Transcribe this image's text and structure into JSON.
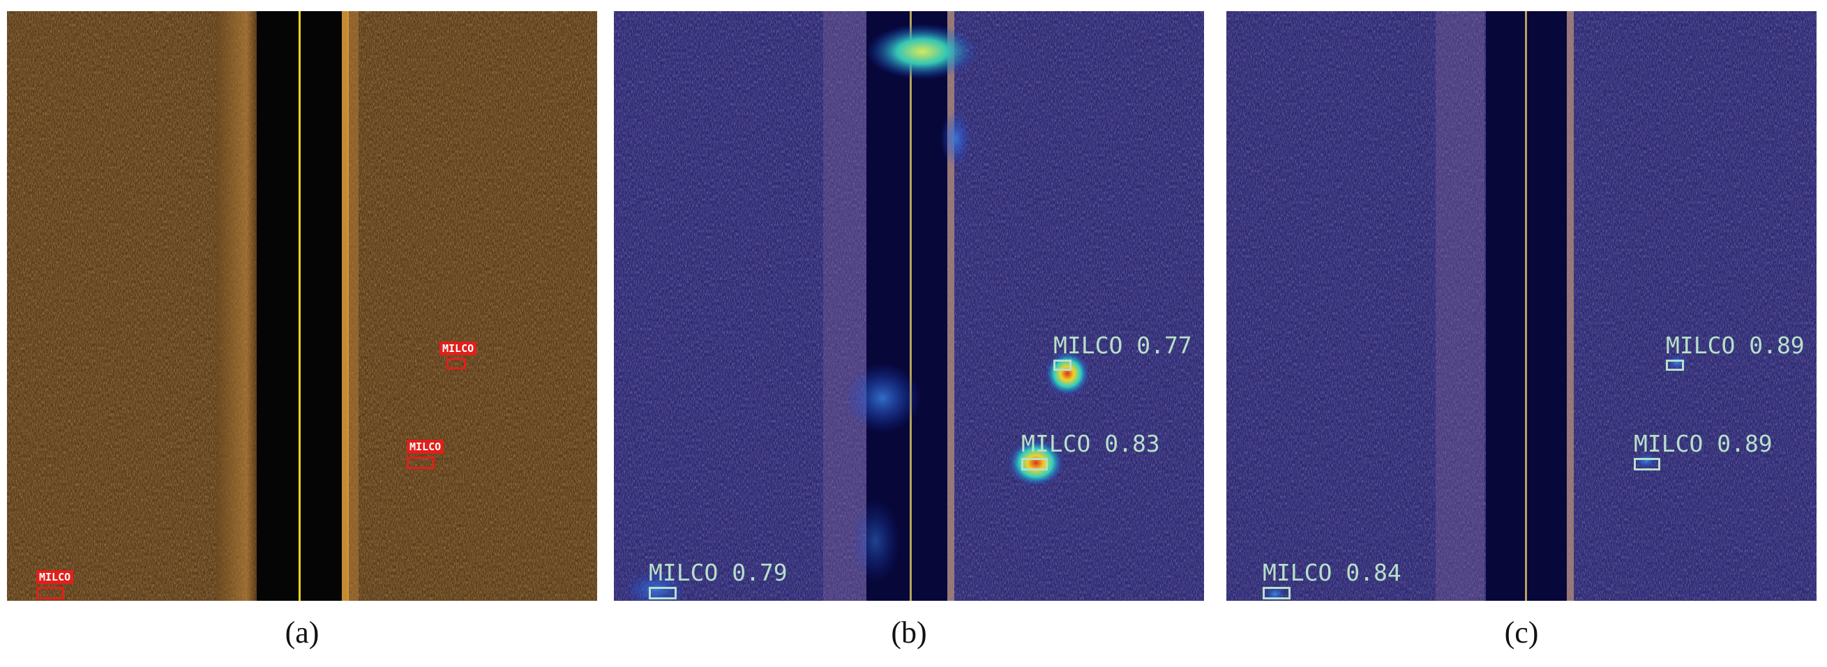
{
  "figure": {
    "panels": [
      {
        "caption": "(a)",
        "style": "raw sonar image",
        "colors": {
          "seabed": "#5a3b19",
          "nadir": "#050505",
          "centerline": "#e8d21a",
          "box": "#e0201a"
        },
        "detections": [
          {
            "label": "MILCO"
          },
          {
            "label": "MILCO"
          },
          {
            "label": "MILCO"
          }
        ]
      },
      {
        "caption": "(b)",
        "style": "heatmap overlay",
        "colors": {
          "seabed": "#2c2a72",
          "nadir": "#07073a",
          "centerline": "#b7a35a",
          "box": "#b7e0c9"
        },
        "detections": [
          {
            "label": "MILCO 0.77"
          },
          {
            "label": "MILCO 0.83"
          },
          {
            "label": "MILCO 0.79"
          }
        ]
      },
      {
        "caption": "(c)",
        "style": "heatmap overlay",
        "colors": {
          "seabed": "#2c2a72",
          "nadir": "#07073a",
          "centerline": "#b7a35a",
          "box": "#b7e0c9"
        },
        "detections": [
          {
            "label": "MILCO 0.89"
          },
          {
            "label": "MILCO 0.89"
          },
          {
            "label": "MILCO 0.84"
          }
        ]
      }
    ]
  }
}
